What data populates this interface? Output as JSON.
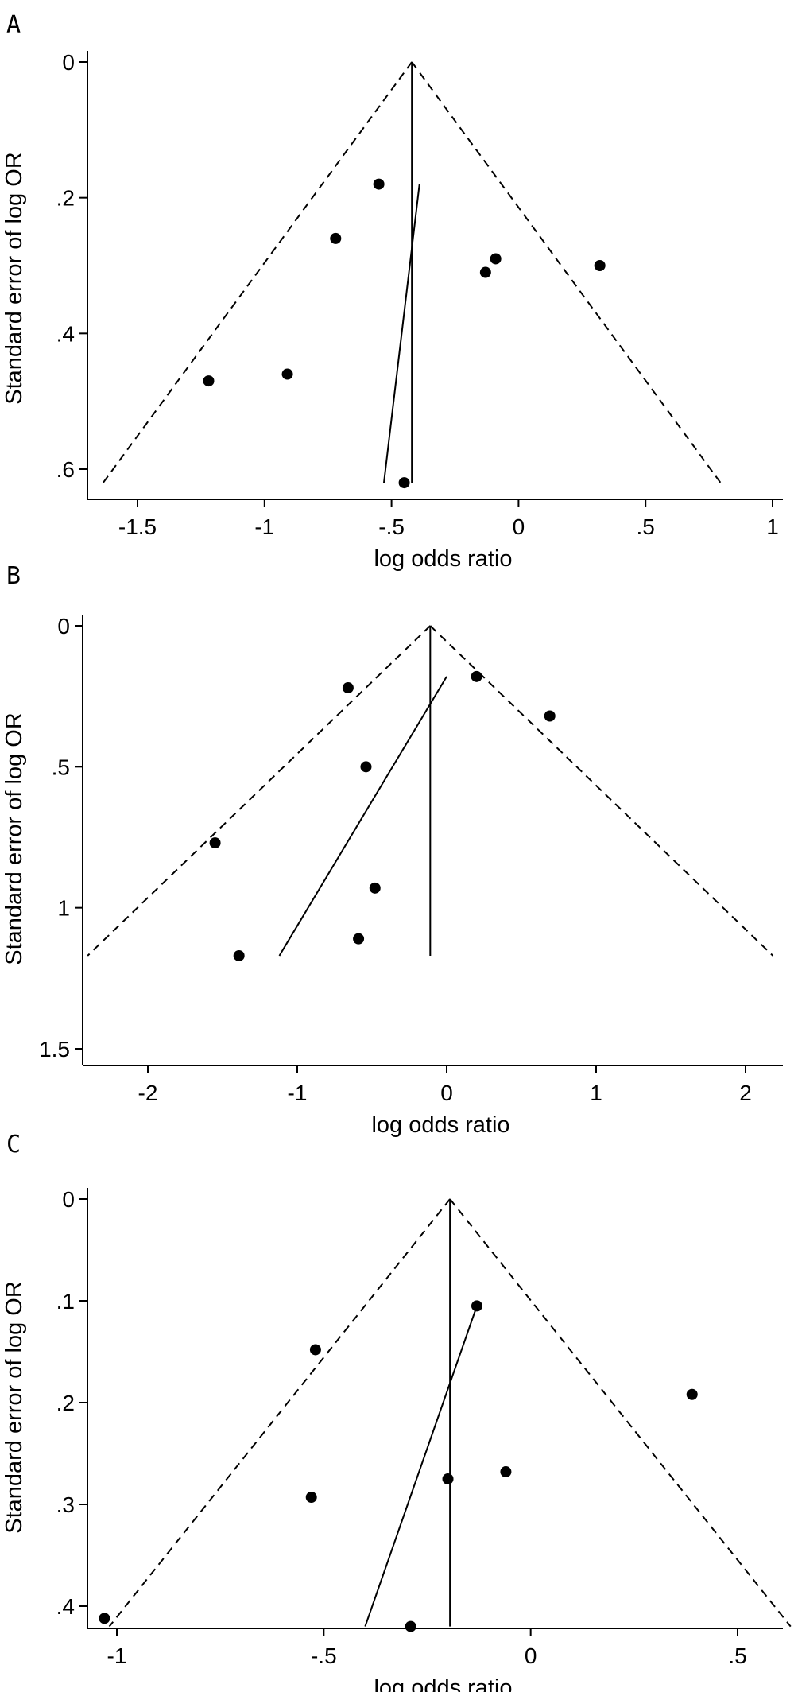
{
  "chart_data": [
    {
      "panel": "A",
      "type": "scatter",
      "subtype": "funnel-plot",
      "xlabel": "log odds ratio",
      "ylabel": "Standard error of log OR",
      "xlim": [
        -1.65,
        1.0
      ],
      "ylim": [
        0,
        0.62
      ],
      "y_inverted": true,
      "x_ticks": [
        "-1.5",
        "-1",
        "-.5",
        "0",
        ".5",
        "1"
      ],
      "x_tick_values": [
        -1.5,
        -1,
        -0.5,
        0,
        0.5,
        1
      ],
      "y_ticks": [
        "0",
        ".2",
        ".4",
        ".6"
      ],
      "y_tick_values": [
        0,
        0.2,
        0.4,
        0.6
      ],
      "pooled_estimate": -0.42,
      "funnel_max_se": 0.62,
      "egger_line": [
        [
          -0.39,
          0.18
        ],
        [
          -0.53,
          0.62
        ]
      ],
      "points": [
        {
          "x": -0.55,
          "y": 0.18
        },
        {
          "x": -0.72,
          "y": 0.26
        },
        {
          "x": -0.13,
          "y": 0.31
        },
        {
          "x": -0.09,
          "y": 0.29
        },
        {
          "x": 0.32,
          "y": 0.3
        },
        {
          "x": -0.91,
          "y": 0.46
        },
        {
          "x": -1.22,
          "y": 0.47
        },
        {
          "x": -0.45,
          "y": 0.62
        }
      ]
    },
    {
      "panel": "B",
      "type": "scatter",
      "subtype": "funnel-plot",
      "xlabel": "log odds ratio",
      "ylabel": "Standard error of log OR",
      "xlim": [
        -2.4,
        2.25
      ],
      "ylim": [
        0,
        1.55
      ],
      "y_inverted": true,
      "x_ticks": [
        "-2",
        "-1",
        "0",
        "1",
        "2"
      ],
      "x_tick_values": [
        -2,
        -1,
        0,
        1,
        2
      ],
      "y_ticks": [
        "0",
        ".5",
        "1",
        "1.5"
      ],
      "y_tick_values": [
        0,
        0.5,
        1,
        1.5
      ],
      "pooled_estimate": -0.11,
      "funnel_max_se": 1.17,
      "egger_line": [
        [
          0.0,
          0.18
        ],
        [
          -1.12,
          1.17
        ]
      ],
      "points": [
        {
          "x": -0.66,
          "y": 0.22
        },
        {
          "x": 0.2,
          "y": 0.18
        },
        {
          "x": 0.69,
          "y": 0.32
        },
        {
          "x": -0.54,
          "y": 0.5
        },
        {
          "x": -1.55,
          "y": 0.77
        },
        {
          "x": -0.48,
          "y": 0.93
        },
        {
          "x": -0.59,
          "y": 1.11
        },
        {
          "x": -1.39,
          "y": 1.17
        }
      ]
    },
    {
      "panel": "C",
      "type": "scatter",
      "subtype": "funnel-plot",
      "xlabel": "log odds ratio",
      "ylabel": "Standard error of log OR",
      "xlim": [
        -1.05,
        0.63
      ],
      "ylim": [
        0,
        0.42
      ],
      "y_inverted": true,
      "x_ticks": [
        "-1",
        "-.5",
        "0",
        ".5"
      ],
      "x_tick_values": [
        -1,
        -0.5,
        0,
        0.5
      ],
      "y_ticks": [
        "0",
        ".1",
        ".2",
        ".3",
        ".4"
      ],
      "y_tick_values": [
        0,
        0.1,
        0.2,
        0.3,
        0.4
      ],
      "pooled_estimate": -0.195,
      "funnel_max_se": 0.42,
      "egger_line": [
        [
          -0.13,
          0.105
        ],
        [
          -0.4,
          0.42
        ]
      ],
      "points": [
        {
          "x": -0.13,
          "y": 0.105
        },
        {
          "x": -0.52,
          "y": 0.148
        },
        {
          "x": 0.39,
          "y": 0.192
        },
        {
          "x": -0.06,
          "y": 0.268
        },
        {
          "x": -0.2,
          "y": 0.275
        },
        {
          "x": -0.53,
          "y": 0.293
        },
        {
          "x": -1.03,
          "y": 0.412
        },
        {
          "x": -0.29,
          "y": 0.42
        }
      ]
    }
  ]
}
